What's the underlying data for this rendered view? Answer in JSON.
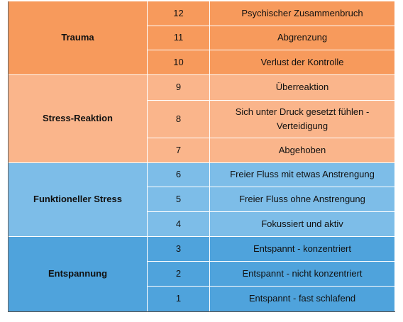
{
  "table": {
    "groups": [
      {
        "label": "Trauma",
        "rows": [
          [
            12,
            "Psychischer Zusammenbruch"
          ],
          [
            11,
            "Abgrenzung"
          ],
          [
            10,
            "Verlust der Kontrolle"
          ]
        ]
      },
      {
        "label": "Stress-Reaktion",
        "rows": [
          [
            9,
            "Überreaktion"
          ],
          [
            8,
            "Sich unter Druck gesetzt fühlen - Verteidigung"
          ],
          [
            7,
            "Abgehoben"
          ]
        ]
      },
      {
        "label": "Funktioneller Stress",
        "rows": [
          [
            6,
            "Freier Fluss mit etwas Anstrengung"
          ],
          [
            5,
            "Freier Fluss ohne Anstrengung"
          ],
          [
            4,
            "Fokussiert und aktiv"
          ]
        ]
      },
      {
        "label": "Entspannung",
        "rows": [
          [
            3,
            "Entspannt - konzentriert"
          ],
          [
            2,
            "Entspannt - nicht konzentriert"
          ],
          [
            1,
            "Entspannt - fast schlafend"
          ]
        ]
      }
    ]
  }
}
